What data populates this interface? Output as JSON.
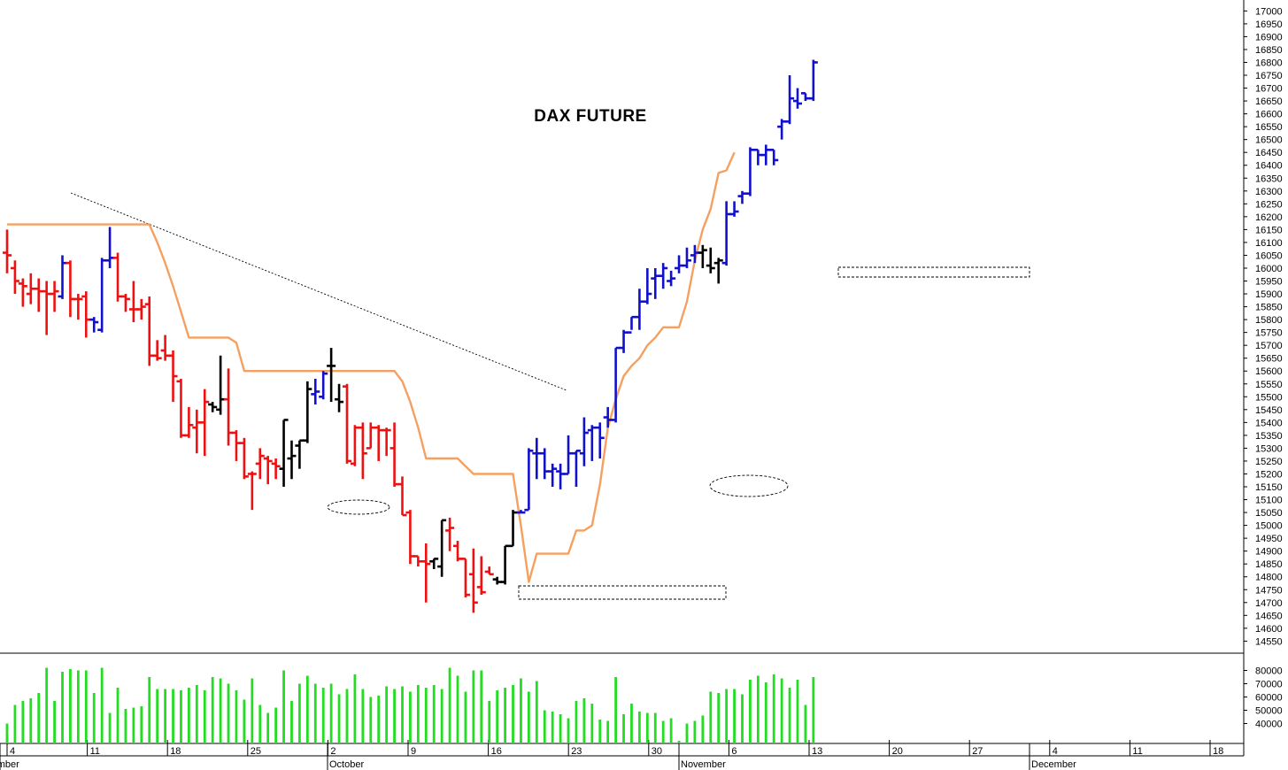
{
  "chart_data": {
    "type": "ohlc-bar",
    "title": "DAX FUTURE",
    "price_ticks": [
      14550,
      14600,
      14650,
      14700,
      14750,
      14800,
      14850,
      14900,
      14950,
      15000,
      15050,
      15100,
      15150,
      15200,
      15250,
      15300,
      15350,
      15400,
      15450,
      15500,
      15550,
      15600,
      15650,
      15700,
      15750,
      15800,
      15850,
      15900,
      15950,
      16000,
      16050,
      16100,
      16150,
      16200,
      16250,
      16300,
      16350,
      16400,
      16450,
      16500,
      16550,
      16600,
      16650,
      16700,
      16750,
      16800,
      16850,
      16900,
      16950,
      17000
    ],
    "price_range": [
      14510,
      17015
    ],
    "volume_ticks": [
      40000,
      50000,
      60000,
      70000,
      80000
    ],
    "volume_range": [
      25000,
      85000
    ],
    "date_ticks": [
      "4",
      "11",
      "18",
      "25",
      "2",
      "9",
      "16",
      "23",
      "30",
      "6",
      "13",
      "20",
      "27",
      "4",
      "11",
      "18"
    ],
    "month_labels": [
      "September",
      "October",
      "November",
      "December"
    ],
    "colors": {
      "down": "#ee1111",
      "neutral": "#000000",
      "up": "#1111cc",
      "stop_line": "#f5a060",
      "volume": "#22dd22"
    },
    "bars": [
      {
        "o": 16060,
        "h": 16150,
        "l": 15980,
        "c": 16050,
        "color": "red",
        "vol": 40000
      },
      {
        "o": 16000,
        "h": 16030,
        "l": 15900,
        "c": 15950,
        "color": "red",
        "vol": 54000
      },
      {
        "o": 15940,
        "h": 15960,
        "l": 15850,
        "c": 15930,
        "color": "red",
        "vol": 57000
      },
      {
        "o": 15900,
        "h": 15980,
        "l": 15860,
        "c": 15920,
        "color": "red",
        "vol": 59000
      },
      {
        "o": 15920,
        "h": 15960,
        "l": 15830,
        "c": 15910,
        "color": "red",
        "vol": 63000
      },
      {
        "o": 15910,
        "h": 15950,
        "l": 15740,
        "c": 15900,
        "color": "red",
        "vol": 82000
      },
      {
        "o": 15900,
        "h": 15950,
        "l": 15830,
        "c": 15910,
        "color": "red",
        "vol": 57000
      },
      {
        "o": 15890,
        "h": 16050,
        "l": 15880,
        "c": 16020,
        "color": "blue",
        "vol": 79000
      },
      {
        "o": 16020,
        "h": 16030,
        "l": 15810,
        "c": 15880,
        "color": "red",
        "vol": 81000
      },
      {
        "o": 15880,
        "h": 15900,
        "l": 15800,
        "c": 15880,
        "color": "red",
        "vol": 80000
      },
      {
        "o": 15890,
        "h": 15910,
        "l": 15730,
        "c": 15800,
        "color": "red",
        "vol": 80000
      },
      {
        "o": 15800,
        "h": 15810,
        "l": 15750,
        "c": 15790,
        "color": "blue",
        "vol": 63000
      },
      {
        "o": 15760,
        "h": 16040,
        "l": 15750,
        "c": 16030,
        "color": "blue",
        "vol": 82000
      },
      {
        "o": 16030,
        "h": 16160,
        "l": 16000,
        "c": 16040,
        "color": "blue",
        "vol": 48000
      },
      {
        "o": 16040,
        "h": 16060,
        "l": 15870,
        "c": 15890,
        "color": "red",
        "vol": 67000
      },
      {
        "o": 15890,
        "h": 15900,
        "l": 15830,
        "c": 15880,
        "color": "red",
        "vol": 51000
      },
      {
        "o": 15840,
        "h": 15950,
        "l": 15790,
        "c": 15840,
        "color": "red",
        "vol": 52000
      },
      {
        "o": 15840,
        "h": 15880,
        "l": 15800,
        "c": 15850,
        "color": "red",
        "vol": 53000
      },
      {
        "o": 15860,
        "h": 15890,
        "l": 15620,
        "c": 15660,
        "color": "red",
        "vol": 75000
      },
      {
        "o": 15660,
        "h": 15720,
        "l": 15640,
        "c": 15650,
        "color": "red",
        "vol": 66000
      },
      {
        "o": 15680,
        "h": 15740,
        "l": 15640,
        "c": 15660,
        "color": "red",
        "vol": 66000
      },
      {
        "o": 15660,
        "h": 15680,
        "l": 15480,
        "c": 15580,
        "color": "red",
        "vol": 66000
      },
      {
        "o": 15560,
        "h": 15570,
        "l": 15340,
        "c": 15350,
        "color": "red",
        "vol": 65000
      },
      {
        "o": 15350,
        "h": 15460,
        "l": 15340,
        "c": 15390,
        "color": "red",
        "vol": 67000
      },
      {
        "o": 15380,
        "h": 15450,
        "l": 15280,
        "c": 15400,
        "color": "red",
        "vol": 69000
      },
      {
        "o": 15400,
        "h": 15530,
        "l": 15270,
        "c": 15480,
        "color": "red",
        "vol": 65000
      },
      {
        "o": 15470,
        "h": 15480,
        "l": 15440,
        "c": 15460,
        "color": "black",
        "vol": 75000
      },
      {
        "o": 15450,
        "h": 15660,
        "l": 15430,
        "c": 15490,
        "color": "black",
        "vol": 74000
      },
      {
        "o": 15490,
        "h": 15610,
        "l": 15310,
        "c": 15360,
        "color": "red",
        "vol": 70000
      },
      {
        "o": 15360,
        "h": 15370,
        "l": 15250,
        "c": 15320,
        "color": "red",
        "vol": 65000
      },
      {
        "o": 15320,
        "h": 15340,
        "l": 15180,
        "c": 15190,
        "color": "red",
        "vol": 58000
      },
      {
        "o": 15200,
        "h": 15210,
        "l": 15060,
        "c": 15200,
        "color": "red",
        "vol": 74000
      },
      {
        "o": 15240,
        "h": 15300,
        "l": 15180,
        "c": 15270,
        "color": "red",
        "vol": 54000
      },
      {
        "o": 15260,
        "h": 15270,
        "l": 15160,
        "c": 15250,
        "color": "red",
        "vol": 48000
      },
      {
        "o": 15240,
        "h": 15260,
        "l": 15180,
        "c": 15230,
        "color": "red",
        "vol": 52000
      },
      {
        "o": 15220,
        "h": 15410,
        "l": 15150,
        "c": 15410,
        "color": "black",
        "vol": 80000
      },
      {
        "o": 15260,
        "h": 15330,
        "l": 15180,
        "c": 15270,
        "color": "black",
        "vol": 57000
      },
      {
        "o": 15310,
        "h": 15330,
        "l": 15220,
        "c": 15330,
        "color": "black",
        "vol": 70000
      },
      {
        "o": 15330,
        "h": 15560,
        "l": 15320,
        "c": 15530,
        "color": "black",
        "vol": 76000
      },
      {
        "o": 15510,
        "h": 15570,
        "l": 15470,
        "c": 15520,
        "color": "blue",
        "vol": 70000
      },
      {
        "o": 15500,
        "h": 15600,
        "l": 15490,
        "c": 15590,
        "color": "blue",
        "vol": 67000
      },
      {
        "o": 15620,
        "h": 15690,
        "l": 15480,
        "c": 15620,
        "color": "black",
        "vol": 70000
      },
      {
        "o": 15490,
        "h": 15550,
        "l": 15440,
        "c": 15480,
        "color": "black",
        "vol": 62000
      },
      {
        "o": 15540,
        "h": 15550,
        "l": 15240,
        "c": 15250,
        "color": "red",
        "vol": 66000
      },
      {
        "o": 15240,
        "h": 15390,
        "l": 15230,
        "c": 15380,
        "color": "red",
        "vol": 77000
      },
      {
        "o": 15380,
        "h": 15400,
        "l": 15180,
        "c": 15280,
        "color": "red",
        "vol": 66000
      },
      {
        "o": 15300,
        "h": 15400,
        "l": 15300,
        "c": 15380,
        "color": "red",
        "vol": 60000
      },
      {
        "o": 15380,
        "h": 15390,
        "l": 15250,
        "c": 15370,
        "color": "red",
        "vol": 61000
      },
      {
        "o": 15370,
        "h": 15380,
        "l": 15270,
        "c": 15370,
        "color": "red",
        "vol": 68000
      },
      {
        "o": 15300,
        "h": 15400,
        "l": 15150,
        "c": 15160,
        "color": "red",
        "vol": 66000
      },
      {
        "o": 15160,
        "h": 15190,
        "l": 15040,
        "c": 15040,
        "color": "red",
        "vol": 68000
      },
      {
        "o": 15050,
        "h": 15060,
        "l": 14850,
        "c": 14880,
        "color": "red",
        "vol": 64000
      },
      {
        "o": 14880,
        "h": 14880,
        "l": 14840,
        "c": 14860,
        "color": "red",
        "vol": 69000
      },
      {
        "o": 14860,
        "h": 14930,
        "l": 14700,
        "c": 14850,
        "color": "red",
        "vol": 67000
      },
      {
        "o": 14860,
        "h": 14870,
        "l": 14830,
        "c": 14870,
        "color": "black",
        "vol": 69000
      },
      {
        "o": 14840,
        "h": 15020,
        "l": 14800,
        "c": 15020,
        "color": "black",
        "vol": 66000
      },
      {
        "o": 14980,
        "h": 15030,
        "l": 14900,
        "c": 14990,
        "color": "red",
        "vol": 82000
      },
      {
        "o": 14920,
        "h": 14940,
        "l": 14860,
        "c": 14870,
        "color": "red",
        "vol": 76000
      },
      {
        "o": 14870,
        "h": 14870,
        "l": 14720,
        "c": 14730,
        "color": "red",
        "vol": 64000
      },
      {
        "o": 14810,
        "h": 14910,
        "l": 14660,
        "c": 14700,
        "color": "red",
        "vol": 80000
      },
      {
        "o": 14760,
        "h": 14880,
        "l": 14730,
        "c": 14740,
        "color": "red",
        "vol": 80000
      },
      {
        "o": 14820,
        "h": 14840,
        "l": 14810,
        "c": 14810,
        "color": "red",
        "vol": 57000
      },
      {
        "o": 14790,
        "h": 14800,
        "l": 14770,
        "c": 14780,
        "color": "black",
        "vol": 65000
      },
      {
        "o": 14780,
        "h": 14920,
        "l": 14770,
        "c": 14920,
        "color": "black",
        "vol": 67000
      },
      {
        "o": 14920,
        "h": 15060,
        "l": 14920,
        "c": 15050,
        "color": "black",
        "vol": 69000
      },
      {
        "o": 15050,
        "h": 15060,
        "l": 15050,
        "c": 15050,
        "color": "blue",
        "vol": 74000
      },
      {
        "o": 15060,
        "h": 15300,
        "l": 15060,
        "c": 15290,
        "color": "blue",
        "vol": 64000
      },
      {
        "o": 15280,
        "h": 15340,
        "l": 15180,
        "c": 15280,
        "color": "blue",
        "vol": 72000
      },
      {
        "o": 15280,
        "h": 15300,
        "l": 15180,
        "c": 15210,
        "color": "blue",
        "vol": 50000
      },
      {
        "o": 15210,
        "h": 15240,
        "l": 15150,
        "c": 15220,
        "color": "blue",
        "vol": 49000
      },
      {
        "o": 15210,
        "h": 15240,
        "l": 15140,
        "c": 15200,
        "color": "blue",
        "vol": 47000
      },
      {
        "o": 15200,
        "h": 15350,
        "l": 15200,
        "c": 15280,
        "color": "blue",
        "vol": 44000
      },
      {
        "o": 15280,
        "h": 15290,
        "l": 15150,
        "c": 15290,
        "color": "blue",
        "vol": 57000
      },
      {
        "o": 15280,
        "h": 15420,
        "l": 15230,
        "c": 15360,
        "color": "blue",
        "vol": 59000
      },
      {
        "o": 15370,
        "h": 15390,
        "l": 15250,
        "c": 15380,
        "color": "blue",
        "vol": 55000
      },
      {
        "o": 15380,
        "h": 15400,
        "l": 15260,
        "c": 15340,
        "color": "blue",
        "vol": 43000
      },
      {
        "o": 15420,
        "h": 15460,
        "l": 15380,
        "c": 15410,
        "color": "blue",
        "vol": 42000
      },
      {
        "o": 15410,
        "h": 15690,
        "l": 15400,
        "c": 15690,
        "color": "blue",
        "vol": 75000
      },
      {
        "o": 15690,
        "h": 15760,
        "l": 15670,
        "c": 15750,
        "color": "blue",
        "vol": 47000
      },
      {
        "o": 15750,
        "h": 15810,
        "l": 15760,
        "c": 15810,
        "color": "blue",
        "vol": 55000
      },
      {
        "o": 15810,
        "h": 15920,
        "l": 15760,
        "c": 15870,
        "color": "blue",
        "vol": 49000
      },
      {
        "o": 15870,
        "h": 16000,
        "l": 15860,
        "c": 15900,
        "color": "blue",
        "vol": 48000
      },
      {
        "o": 15960,
        "h": 16000,
        "l": 15880,
        "c": 15970,
        "color": "blue",
        "vol": 48000
      },
      {
        "o": 15970,
        "h": 16020,
        "l": 15920,
        "c": 16000,
        "color": "blue",
        "vol": 42000
      },
      {
        "o": 15950,
        "h": 15990,
        "l": 15930,
        "c": 15960,
        "color": "blue",
        "vol": 44000
      },
      {
        "o": 16000,
        "h": 16050,
        "l": 15980,
        "c": 16010,
        "color": "blue",
        "vol": 27000
      },
      {
        "o": 16010,
        "h": 16080,
        "l": 16000,
        "c": 16030,
        "color": "blue",
        "vol": 40000
      },
      {
        "o": 16050,
        "h": 16090,
        "l": 16020,
        "c": 16060,
        "color": "blue",
        "vol": 42000
      },
      {
        "o": 16060,
        "h": 16090,
        "l": 16000,
        "c": 16070,
        "color": "black",
        "vol": 46000
      },
      {
        "o": 16010,
        "h": 16080,
        "l": 15980,
        "c": 16000,
        "color": "black",
        "vol": 64000
      },
      {
        "o": 16020,
        "h": 16040,
        "l": 15940,
        "c": 16030,
        "color": "black",
        "vol": 63000
      },
      {
        "o": 16020,
        "h": 16260,
        "l": 16010,
        "c": 16210,
        "color": "blue",
        "vol": 66000
      },
      {
        "o": 16210,
        "h": 16260,
        "l": 16200,
        "c": 16220,
        "color": "blue",
        "vol": 66000
      },
      {
        "o": 16280,
        "h": 16300,
        "l": 16250,
        "c": 16290,
        "color": "blue",
        "vol": 62000
      },
      {
        "o": 16290,
        "h": 16470,
        "l": 16280,
        "c": 16460,
        "color": "blue",
        "vol": 73000
      },
      {
        "o": 16460,
        "h": 16460,
        "l": 16400,
        "c": 16440,
        "color": "blue",
        "vol": 76000
      },
      {
        "o": 16440,
        "h": 16480,
        "l": 16400,
        "c": 16460,
        "color": "blue",
        "vol": 71000
      },
      {
        "o": 16460,
        "h": 16460,
        "l": 16400,
        "c": 16420,
        "color": "blue",
        "vol": 77000
      },
      {
        "o": 16550,
        "h": 16580,
        "l": 16500,
        "c": 16570,
        "color": "blue",
        "vol": 74000
      },
      {
        "o": 16570,
        "h": 16750,
        "l": 16560,
        "c": 16660,
        "color": "blue",
        "vol": 67000
      },
      {
        "o": 16650,
        "h": 16700,
        "l": 16620,
        "c": 16640,
        "color": "blue",
        "vol": 73000
      },
      {
        "o": 16680,
        "h": 16680,
        "l": 16650,
        "c": 16660,
        "color": "blue",
        "vol": 54000
      },
      {
        "o": 16660,
        "h": 16810,
        "l": 16650,
        "c": 16800,
        "color": "blue",
        "vol": 75000
      }
    ],
    "stop_line": [
      16170,
      16170,
      16170,
      16170,
      16170,
      16170,
      16170,
      16170,
      16170,
      16170,
      16170,
      16170,
      16170,
      16170,
      16170,
      16170,
      16170,
      16170,
      16170,
      16100,
      16020,
      15930,
      15830,
      15730,
      15730,
      15730,
      15730,
      15730,
      15730,
      15710,
      15600,
      15600,
      15600,
      15600,
      15600,
      15600,
      15600,
      15600,
      15600,
      15600,
      15600,
      15600,
      15600,
      15600,
      15600,
      15600,
      15600,
      15600,
      15600,
      15600,
      15560,
      15480,
      15380,
      15260,
      15260,
      15260,
      15260,
      15260,
      15230,
      15200,
      15200,
      15200,
      15200,
      15200,
      15200,
      15000,
      14780,
      14890,
      14890,
      14890,
      14890,
      14890,
      14980,
      14980,
      15000,
      15160,
      15380,
      15490,
      15580,
      15620,
      15650,
      15700,
      15730,
      15770,
      15770,
      15770,
      15870,
      16030,
      16150,
      16230,
      16370,
      16380,
      16450
    ]
  }
}
